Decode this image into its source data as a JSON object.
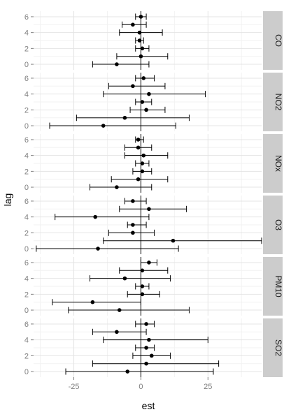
{
  "chart_data": {
    "type": "forest",
    "xlabel": "est",
    "ylabel": "lag",
    "xlim": [
      -40,
      45
    ],
    "xticks": [
      -25,
      0,
      25
    ],
    "ylim": [
      -0.7,
      6.7
    ],
    "yticks": [
      0,
      2,
      4,
      6
    ],
    "reference_line": 0,
    "grid": true,
    "panels": [
      {
        "name": "CO",
        "points": [
          {
            "lag": 6,
            "est": 0.0,
            "lo": -2,
            "hi": 2
          },
          {
            "lag": 5,
            "est": -3,
            "lo": -7,
            "hi": 2
          },
          {
            "lag": 4,
            "est": -0.5,
            "lo": -8,
            "hi": 8
          },
          {
            "lag": 3,
            "est": -0.5,
            "lo": -2,
            "hi": 1
          },
          {
            "lag": 2,
            "est": 0.5,
            "lo": -2,
            "hi": 3
          },
          {
            "lag": 1,
            "est": 0.0,
            "lo": -9,
            "hi": 10
          },
          {
            "lag": 0,
            "est": -9,
            "lo": -18,
            "hi": 3
          }
        ]
      },
      {
        "name": "NO2",
        "points": [
          {
            "lag": 6,
            "est": 1,
            "lo": -2,
            "hi": 5
          },
          {
            "lag": 5,
            "est": -3,
            "lo": -12,
            "hi": 9
          },
          {
            "lag": 4,
            "est": 3,
            "lo": -14,
            "hi": 24
          },
          {
            "lag": 3,
            "est": 0.5,
            "lo": -2,
            "hi": 4
          },
          {
            "lag": 2,
            "est": 2,
            "lo": -4,
            "hi": 9
          },
          {
            "lag": 1,
            "est": -6,
            "lo": -24,
            "hi": 18
          },
          {
            "lag": 0,
            "est": -14,
            "lo": -34,
            "hi": 13
          }
        ]
      },
      {
        "name": "NOx",
        "points": [
          {
            "lag": 6,
            "est": -1,
            "lo": -2,
            "hi": 1
          },
          {
            "lag": 5,
            "est": -1,
            "lo": -6,
            "hi": 4
          },
          {
            "lag": 4,
            "est": 1,
            "lo": -6,
            "hi": 10
          },
          {
            "lag": 3,
            "est": 0.5,
            "lo": -2,
            "hi": 3
          },
          {
            "lag": 2,
            "est": 0.5,
            "lo": -3,
            "hi": 4
          },
          {
            "lag": 1,
            "est": -1,
            "lo": -11,
            "hi": 10
          },
          {
            "lag": 0,
            "est": -9,
            "lo": -19,
            "hi": 4
          }
        ]
      },
      {
        "name": "O3",
        "points": [
          {
            "lag": 6,
            "est": -3,
            "lo": -6,
            "hi": 2
          },
          {
            "lag": 5,
            "est": 3,
            "lo": -8,
            "hi": 17
          },
          {
            "lag": 4,
            "est": -17,
            "lo": -32,
            "hi": 3
          },
          {
            "lag": 3,
            "est": -3,
            "lo": -5,
            "hi": 2
          },
          {
            "lag": 2,
            "est": -3,
            "lo": -12,
            "hi": 5
          },
          {
            "lag": 1,
            "est": 12,
            "lo": -14,
            "hi": 45
          },
          {
            "lag": 0,
            "est": -16,
            "lo": -39,
            "hi": 14
          }
        ]
      },
      {
        "name": "PM10",
        "points": [
          {
            "lag": 6,
            "est": 3,
            "lo": 0,
            "hi": 6
          },
          {
            "lag": 5,
            "est": 0.5,
            "lo": -8,
            "hi": 10
          },
          {
            "lag": 4,
            "est": -6,
            "lo": -19,
            "hi": 11
          },
          {
            "lag": 3,
            "est": 0.5,
            "lo": -2,
            "hi": 3
          },
          {
            "lag": 2,
            "est": 0.5,
            "lo": -5,
            "hi": 7
          },
          {
            "lag": 1,
            "est": -18,
            "lo": -33,
            "hi": 0
          },
          {
            "lag": 0,
            "est": -8,
            "lo": -27,
            "hi": 18
          }
        ]
      },
      {
        "name": "SO2",
        "points": [
          {
            "lag": 6,
            "est": 2,
            "lo": -2,
            "hi": 5
          },
          {
            "lag": 5,
            "est": -9,
            "lo": -18,
            "hi": 2
          },
          {
            "lag": 4,
            "est": 3,
            "lo": -14,
            "hi": 25
          },
          {
            "lag": 3,
            "est": 2,
            "lo": -2,
            "hi": 5
          },
          {
            "lag": 2,
            "est": 4,
            "lo": -3,
            "hi": 11
          },
          {
            "lag": 1,
            "est": 2,
            "lo": -18,
            "hi": 29
          },
          {
            "lag": 0,
            "est": -5,
            "lo": -28,
            "hi": 27
          }
        ]
      }
    ]
  }
}
